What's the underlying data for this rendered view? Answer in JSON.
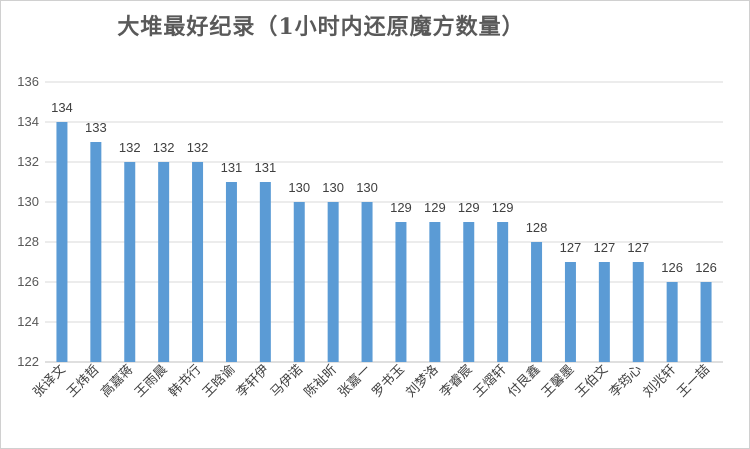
{
  "chart_data": {
    "type": "bar",
    "title": "大堆最好纪录（1小时内还原魔方数量）",
    "xlabel": "",
    "ylabel": "",
    "ylim": [
      122,
      136
    ],
    "yticks": [
      122,
      124,
      126,
      128,
      130,
      132,
      134,
      136
    ],
    "grid": true,
    "legend": "none",
    "bar_color": "#5B9BD5",
    "grid_color": "#D9D9D9",
    "categories": [
      "张译文",
      "王炜哲",
      "高嘉蒋",
      "王雨晨",
      "韩书行",
      "王晗谕",
      "李轩伊",
      "马伊诺",
      "陈祉昕",
      "张嘉一",
      "罗书玉",
      "刘梦洛",
      "李睿宸",
      "王熠轩",
      "付艮鑫",
      "王馨墨",
      "王伯文",
      "李筠心",
      "刘兆轩",
      "王一喆"
    ],
    "values": [
      134,
      133,
      132,
      132,
      132,
      131,
      131,
      130,
      130,
      130,
      129,
      129,
      129,
      129,
      128,
      127,
      127,
      127,
      126,
      126
    ]
  }
}
